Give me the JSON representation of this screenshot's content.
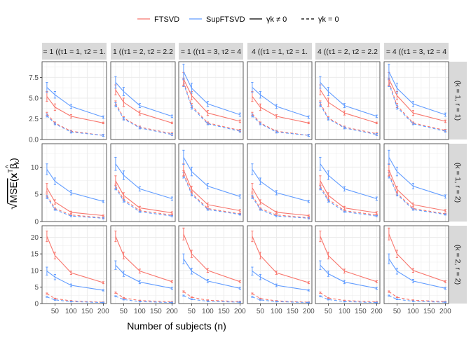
{
  "chart_data": {
    "type": "line",
    "xlabel": "Number of subjects (n)",
    "ylabel_parts": {
      "radical": "√",
      "mse": "MSE(",
      "x": "x",
      "t": "T",
      "beta": "β",
      "hat": "^",
      "sub": "k",
      "close": ")"
    },
    "x": [
      25,
      50,
      100,
      200
    ],
    "x_ticks": [
      50,
      100,
      150,
      200
    ],
    "xlim": [
      10,
      210
    ],
    "legend": {
      "colors": [
        {
          "label": "FTSVD",
          "color": "#f8766d"
        },
        {
          "label": "SupFTSVD",
          "color": "#619cff"
        }
      ],
      "linetypes": [
        {
          "label": "γk ≠ 0",
          "dash": "solid"
        },
        {
          "label": "γk = 0",
          "dash": "dashed"
        }
      ],
      "placement": "top"
    },
    "col_strips": [
      "= 1 ((τ1 = 1, τ2 = 1.",
      "1 ((τ1 = 2, τ2 = 2.2",
      "= 1 ((τ1 = 3, τ2 = 4",
      "4 ((τ1 = 1, τ2 = 1.",
      "4 ((τ1 = 2, τ2 = 2.2",
      "= 4 ((τ1 = 3, τ2 = 4"
    ],
    "row_strips": [
      "(k = 1, r = 1)",
      "(k = 1, r = 2)",
      "(k = 2, r = 2)"
    ],
    "rows": [
      {
        "ylim": [
          0,
          9.4
        ],
        "yticks": [
          0.0,
          2.5,
          5.0,
          7.5
        ],
        "ytick_labels": [
          "0.0",
          "2.5",
          "5.0",
          "7.5"
        ],
        "panels": [
          {
            "ftsvd": [
              5.2,
              3.9,
              2.8,
              2.0
            ],
            "ftsvd_err": [
              0.6,
              0.4,
              0.2,
              0.1
            ],
            "supftsvd": [
              6.3,
              5.4,
              4.0,
              2.7
            ],
            "supftsvd_err": [
              0.6,
              0.4,
              0.25,
              0.15
            ],
            "ftsvd0": [
              3.1,
              2.0,
              1.0,
              0.5
            ],
            "supftsvd0": [
              2.9,
              1.9,
              0.9,
              0.5
            ]
          },
          {
            "ftsvd": [
              6.0,
              4.5,
              3.2,
              2.0
            ],
            "ftsvd_err": [
              0.6,
              0.5,
              0.25,
              0.1
            ],
            "supftsvd": [
              6.9,
              5.8,
              4.1,
              2.8
            ],
            "supftsvd_err": [
              0.7,
              0.5,
              0.25,
              0.15
            ],
            "ftsvd0": [
              4.4,
              2.6,
              1.5,
              0.7
            ],
            "supftsvd0": [
              4.2,
              2.5,
              1.4,
              0.6
            ]
          },
          {
            "ftsvd": [
              7.3,
              5.3,
              3.2,
              2.2
            ],
            "ftsvd_err": [
              0.8,
              0.5,
              0.3,
              0.15
            ],
            "supftsvd": [
              8.2,
              6.2,
              4.3,
              3.0
            ],
            "supftsvd_err": [
              0.9,
              0.6,
              0.3,
              0.2
            ],
            "ftsvd0": [
              7.0,
              4.1,
              2.0,
              1.1
            ],
            "supftsvd0": [
              6.8,
              3.9,
              1.9,
              1.0
            ]
          },
          {
            "ftsvd": [
              5.2,
              3.9,
              2.8,
              2.0
            ],
            "ftsvd_err": [
              0.6,
              0.4,
              0.2,
              0.1
            ],
            "supftsvd": [
              6.3,
              5.4,
              4.0,
              2.7
            ],
            "supftsvd_err": [
              0.6,
              0.4,
              0.25,
              0.15
            ],
            "ftsvd0": [
              3.1,
              2.0,
              1.0,
              0.5
            ],
            "supftsvd0": [
              2.9,
              1.9,
              0.9,
              0.5
            ]
          },
          {
            "ftsvd": [
              6.0,
              4.5,
              3.2,
              2.0
            ],
            "ftsvd_err": [
              0.6,
              0.5,
              0.25,
              0.1
            ],
            "supftsvd": [
              6.9,
              5.8,
              4.1,
              2.8
            ],
            "supftsvd_err": [
              0.7,
              0.5,
              0.25,
              0.15
            ],
            "ftsvd0": [
              4.4,
              2.6,
              1.5,
              0.7
            ],
            "supftsvd0": [
              4.2,
              2.5,
              1.4,
              0.6
            ]
          },
          {
            "ftsvd": [
              7.3,
              5.3,
              3.2,
              2.2
            ],
            "ftsvd_err": [
              0.8,
              0.5,
              0.3,
              0.15
            ],
            "supftsvd": [
              8.2,
              6.2,
              4.3,
              3.0
            ],
            "supftsvd_err": [
              0.9,
              0.6,
              0.3,
              0.2
            ],
            "ftsvd0": [
              7.0,
              4.1,
              2.0,
              1.1
            ],
            "supftsvd0": [
              6.8,
              3.9,
              1.9,
              1.0
            ]
          }
        ]
      },
      {
        "ylim": [
          0,
          14.3
        ],
        "yticks": [
          0,
          5,
          10
        ],
        "ytick_labels": [
          "0",
          "5",
          "10"
        ],
        "panels": [
          {
            "ftsvd": [
              6.2,
              3.6,
              1.7,
              1.1
            ],
            "ftsvd_err": [
              0.8,
              0.4,
              0.2,
              0.1
            ],
            "supftsvd": [
              9.6,
              7.4,
              5.3,
              3.7
            ],
            "supftsvd_err": [
              1.0,
              0.6,
              0.4,
              0.2
            ],
            "ftsvd0": [
              4.8,
              2.4,
              1.2,
              0.7
            ],
            "supftsvd0": [
              4.5,
              2.2,
              1.0,
              0.6
            ]
          },
          {
            "ftsvd": [
              7.5,
              4.8,
              2.5,
              1.6
            ],
            "ftsvd_err": [
              0.9,
              0.5,
              0.3,
              0.2
            ],
            "supftsvd": [
              10.6,
              8.5,
              6.0,
              4.2
            ],
            "supftsvd_err": [
              1.2,
              0.8,
              0.4,
              0.3
            ],
            "ftsvd0": [
              6.5,
              4.1,
              2.0,
              1.2
            ],
            "supftsvd0": [
              6.2,
              3.8,
              1.8,
              1.0
            ]
          },
          {
            "ftsvd": [
              9.5,
              5.9,
              3.1,
              2.0
            ],
            "ftsvd_err": [
              1.1,
              0.6,
              0.3,
              0.2
            ],
            "supftsvd": [
              11.8,
              9.2,
              6.5,
              4.6
            ],
            "supftsvd_err": [
              1.3,
              0.8,
              0.5,
              0.3
            ],
            "ftsvd0": [
              8.8,
              5.2,
              2.4,
              1.4
            ],
            "supftsvd0": [
              8.5,
              5.0,
              2.2,
              1.3
            ]
          },
          {
            "ftsvd": [
              6.2,
              3.6,
              1.7,
              1.1
            ],
            "ftsvd_err": [
              0.8,
              0.4,
              0.2,
              0.1
            ],
            "supftsvd": [
              9.6,
              7.4,
              5.3,
              3.7
            ],
            "supftsvd_err": [
              1.0,
              0.6,
              0.4,
              0.2
            ],
            "ftsvd0": [
              4.8,
              2.4,
              1.2,
              0.7
            ],
            "supftsvd0": [
              4.5,
              2.2,
              1.0,
              0.6
            ]
          },
          {
            "ftsvd": [
              7.5,
              4.8,
              2.5,
              1.6
            ],
            "ftsvd_err": [
              0.9,
              0.5,
              0.3,
              0.2
            ],
            "supftsvd": [
              10.6,
              8.5,
              6.0,
              4.2
            ],
            "supftsvd_err": [
              1.2,
              0.8,
              0.4,
              0.3
            ],
            "ftsvd0": [
              6.5,
              4.1,
              2.0,
              1.2
            ],
            "supftsvd0": [
              6.2,
              3.8,
              1.8,
              1.0
            ]
          },
          {
            "ftsvd": [
              9.5,
              5.9,
              3.1,
              2.0
            ],
            "ftsvd_err": [
              1.1,
              0.6,
              0.3,
              0.2
            ],
            "supftsvd": [
              11.8,
              9.2,
              6.5,
              4.6
            ],
            "supftsvd_err": [
              1.3,
              0.8,
              0.5,
              0.3
            ],
            "ftsvd0": [
              8.8,
              5.2,
              2.4,
              1.4
            ],
            "supftsvd0": [
              8.5,
              5.0,
              2.2,
              1.3
            ]
          }
        ]
      },
      {
        "ylim": [
          0,
          23.5
        ],
        "yticks": [
          0,
          5,
          10,
          15,
          20
        ],
        "ytick_labels": [
          "0",
          "5",
          "10",
          "15",
          "20"
        ],
        "panels": [
          {
            "ftsvd": [
              20.3,
              14.5,
              9.3,
              6.3
            ],
            "ftsvd_err": [
              1.6,
              1.0,
              0.5,
              0.3
            ],
            "supftsvd": [
              9.8,
              8.0,
              5.5,
              4.0
            ],
            "supftsvd_err": [
              1.2,
              0.8,
              0.4,
              0.2
            ],
            "ftsvd0": [
              3.0,
              1.5,
              0.8,
              0.4
            ],
            "supftsvd0": [
              2.0,
              1.1,
              0.6,
              0.3
            ]
          },
          {
            "ftsvd": [
              20.3,
              14.5,
              9.8,
              6.6
            ],
            "ftsvd_err": [
              1.6,
              1.0,
              0.6,
              0.3
            ],
            "supftsvd": [
              11.6,
              9.0,
              6.5,
              4.6
            ],
            "supftsvd_err": [
              1.3,
              0.8,
              0.5,
              0.3
            ],
            "ftsvd0": [
              3.3,
              1.7,
              0.9,
              0.5
            ],
            "supftsvd0": [
              2.2,
              1.2,
              0.6,
              0.3
            ]
          },
          {
            "ftsvd": [
              21.0,
              15.0,
              10.0,
              6.6
            ],
            "ftsvd_err": [
              1.8,
              1.1,
              0.6,
              0.3
            ],
            "supftsvd": [
              13.5,
              9.8,
              6.8,
              4.6
            ],
            "supftsvd_err": [
              1.5,
              0.9,
              0.5,
              0.3
            ],
            "ftsvd0": [
              3.6,
              1.9,
              1.0,
              0.6
            ],
            "supftsvd0": [
              2.4,
              1.3,
              0.7,
              0.4
            ]
          },
          {
            "ftsvd": [
              20.3,
              14.5,
              9.3,
              6.3
            ],
            "ftsvd_err": [
              1.6,
              1.0,
              0.5,
              0.3
            ],
            "supftsvd": [
              9.8,
              8.0,
              5.5,
              4.0
            ],
            "supftsvd_err": [
              1.2,
              0.8,
              0.4,
              0.2
            ],
            "ftsvd0": [
              3.0,
              1.5,
              0.8,
              0.4
            ],
            "supftsvd0": [
              2.0,
              1.1,
              0.6,
              0.3
            ]
          },
          {
            "ftsvd": [
              20.3,
              14.5,
              9.8,
              6.6
            ],
            "ftsvd_err": [
              1.6,
              1.0,
              0.6,
              0.3
            ],
            "supftsvd": [
              11.6,
              9.0,
              6.5,
              4.6
            ],
            "supftsvd_err": [
              1.3,
              0.8,
              0.5,
              0.3
            ],
            "ftsvd0": [
              3.3,
              1.7,
              0.9,
              0.5
            ],
            "supftsvd0": [
              2.2,
              1.2,
              0.6,
              0.3
            ]
          },
          {
            "ftsvd": [
              21.0,
              15.0,
              10.0,
              6.6
            ],
            "ftsvd_err": [
              1.8,
              1.1,
              0.6,
              0.3
            ],
            "supftsvd": [
              13.5,
              9.8,
              6.8,
              4.6
            ],
            "supftsvd_err": [
              1.5,
              0.9,
              0.5,
              0.3
            ],
            "ftsvd0": [
              3.6,
              1.9,
              1.0,
              0.6
            ],
            "supftsvd0": [
              2.4,
              1.3,
              0.7,
              0.4
            ]
          }
        ]
      }
    ],
    "grid": true,
    "panel_background": "#ffffff",
    "grid_color": "#ebebeb",
    "strip_background": "#d9d9d9",
    "strip_text_color": "#1a1a1a",
    "axis_text_color": "#4d4d4d",
    "panel_border_color": "#333333"
  }
}
